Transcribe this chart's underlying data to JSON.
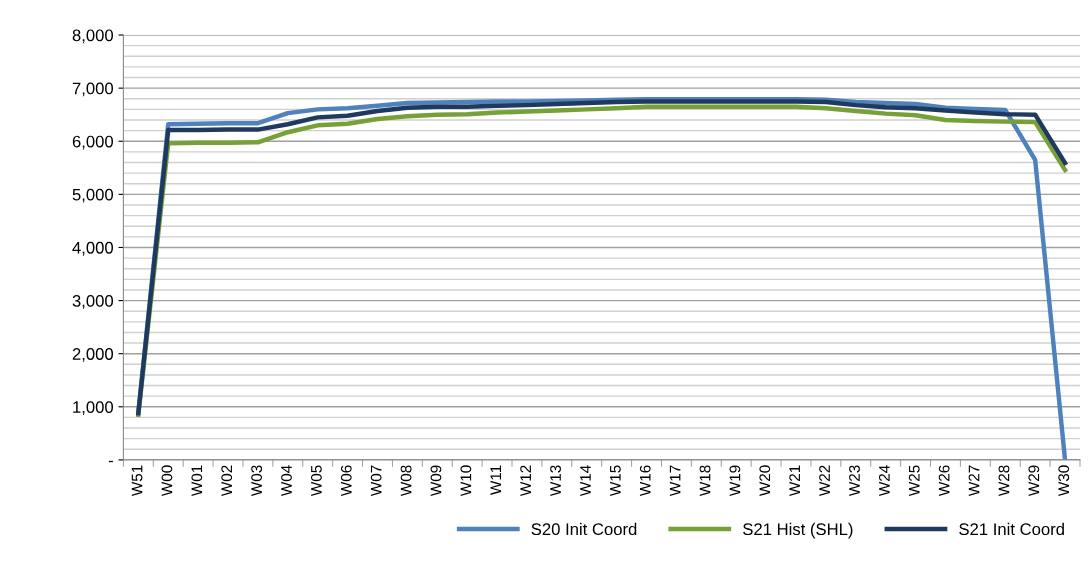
{
  "chart_data": {
    "type": "line",
    "categories": [
      "W51",
      "W00",
      "W01",
      "W02",
      "W03",
      "W04",
      "W05",
      "W06",
      "W07",
      "W08",
      "W09",
      "W10",
      "W11",
      "W12",
      "W13",
      "W14",
      "W15",
      "W16",
      "W17",
      "W18",
      "W19",
      "W20",
      "W21",
      "W22",
      "W23",
      "W24",
      "W25",
      "W26",
      "W27",
      "W28",
      "W29",
      "W30"
    ],
    "series": [
      {
        "name": "S20 Init Coord",
        "color": "#4f81bd",
        "values": [
          900,
          6320,
          6330,
          6340,
          6340,
          6530,
          6600,
          6620,
          6670,
          6720,
          6730,
          6740,
          6750,
          6750,
          6760,
          6770,
          6780,
          6790,
          6790,
          6790,
          6790,
          6790,
          6790,
          6780,
          6740,
          6720,
          6700,
          6630,
          6610,
          6590,
          5650,
          0
        ]
      },
      {
        "name": "S21 Hist (SHL)",
        "color": "#77a038",
        "values": [
          850,
          5960,
          5970,
          5970,
          5980,
          6170,
          6300,
          6330,
          6420,
          6470,
          6500,
          6510,
          6540,
          6560,
          6580,
          6600,
          6620,
          6650,
          6650,
          6650,
          6650,
          6650,
          6650,
          6620,
          6570,
          6520,
          6490,
          6400,
          6380,
          6370,
          6360,
          5460
        ]
      },
      {
        "name": "S21 Init Coord",
        "color": "#1f3a5f",
        "values": [
          880,
          6210,
          6210,
          6220,
          6220,
          6320,
          6450,
          6480,
          6570,
          6630,
          6650,
          6650,
          6670,
          6680,
          6700,
          6720,
          6740,
          6750,
          6750,
          6750,
          6750,
          6750,
          6750,
          6740,
          6680,
          6640,
          6620,
          6580,
          6540,
          6510,
          6500,
          5590
        ]
      }
    ],
    "ylim": [
      0,
      8000
    ],
    "yticks": [
      {
        "value": 0,
        "label": "-"
      },
      {
        "value": 200,
        "label": null
      },
      {
        "value": 400,
        "label": null
      },
      {
        "value": 600,
        "label": null
      },
      {
        "value": 800,
        "label": null
      },
      {
        "value": 1000,
        "label": "1,000"
      },
      {
        "value": 1200,
        "label": null
      },
      {
        "value": 1400,
        "label": null
      },
      {
        "value": 1600,
        "label": null
      },
      {
        "value": 1800,
        "label": null
      },
      {
        "value": 2000,
        "label": "2,000"
      },
      {
        "value": 2200,
        "label": null
      },
      {
        "value": 2400,
        "label": null
      },
      {
        "value": 2600,
        "label": null
      },
      {
        "value": 2800,
        "label": null
      },
      {
        "value": 3000,
        "label": "3,000"
      },
      {
        "value": 3200,
        "label": null
      },
      {
        "value": 3400,
        "label": null
      },
      {
        "value": 3600,
        "label": null
      },
      {
        "value": 3800,
        "label": null
      },
      {
        "value": 4000,
        "label": "4,000"
      },
      {
        "value": 4200,
        "label": null
      },
      {
        "value": 4400,
        "label": null
      },
      {
        "value": 4600,
        "label": null
      },
      {
        "value": 4800,
        "label": null
      },
      {
        "value": 5000,
        "label": "5,000"
      },
      {
        "value": 5200,
        "label": null
      },
      {
        "value": 5400,
        "label": null
      },
      {
        "value": 5600,
        "label": null
      },
      {
        "value": 5800,
        "label": null
      },
      {
        "value": 6000,
        "label": "6,000"
      },
      {
        "value": 6200,
        "label": null
      },
      {
        "value": 6400,
        "label": null
      },
      {
        "value": 6600,
        "label": null
      },
      {
        "value": 6800,
        "label": null
      },
      {
        "value": 7000,
        "label": "7,000"
      },
      {
        "value": 7200,
        "label": null
      },
      {
        "value": 7400,
        "label": null
      },
      {
        "value": 7600,
        "label": null
      },
      {
        "value": 7800,
        "label": null
      },
      {
        "value": 8000,
        "label": "8,000"
      }
    ],
    "grid": "y",
    "legend": "bottom right",
    "marker": "none",
    "line_style": "solid"
  }
}
